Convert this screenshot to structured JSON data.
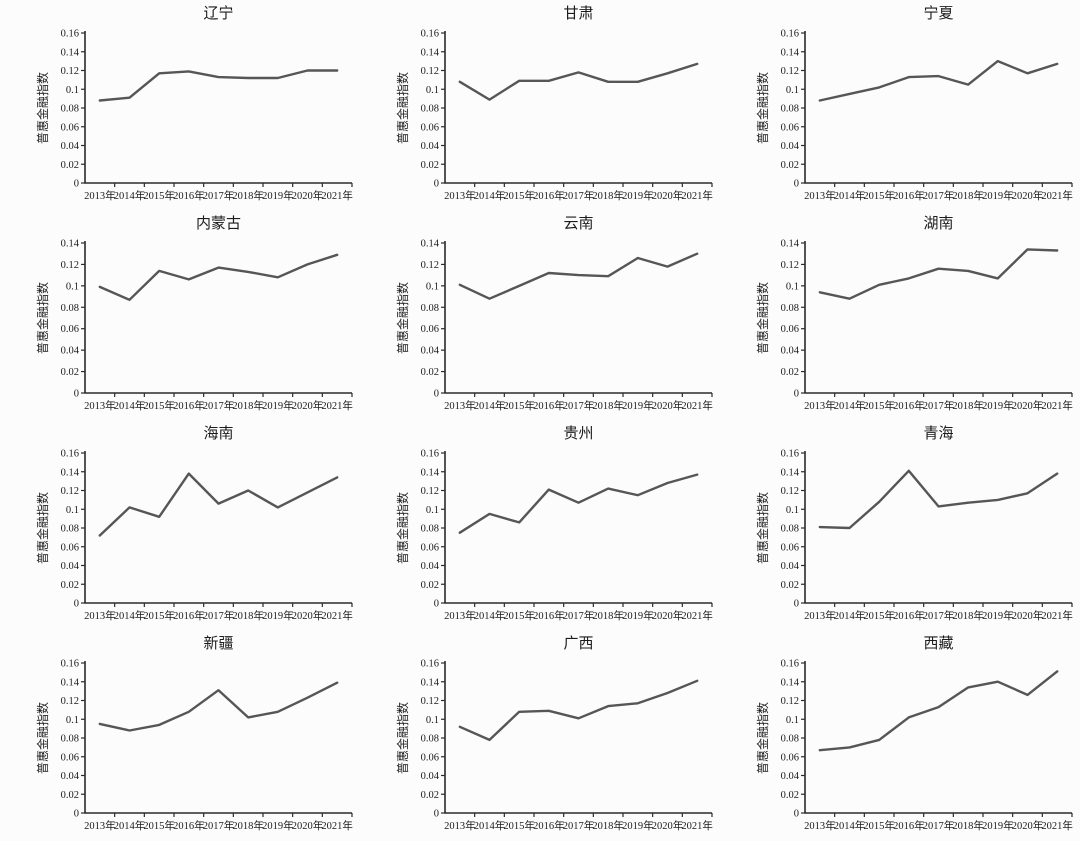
{
  "figure_title": "",
  "shared": {
    "ylabel": "普惠金融指数",
    "x_labels": [
      "2013年",
      "2014年",
      "2015年",
      "2016年",
      "2017年",
      "2018年",
      "2019年",
      "2020年",
      "2021年"
    ]
  },
  "colors": {
    "line": "#565656",
    "axis": "#2b2b2b",
    "text": "#1c1c1c",
    "background": "#fcfcfc"
  },
  "chart_data": [
    {
      "type": "line",
      "title": "辽宁",
      "xlabel": "",
      "ylabel": "普惠金融指数",
      "ylim": [
        0,
        0.16
      ],
      "ytick_labels": [
        "0",
        "0.02",
        "0.04",
        "0.06",
        "0.08",
        "0.1",
        "0.12",
        "0.14",
        "0.16"
      ],
      "values": [
        0.088,
        0.091,
        0.117,
        0.119,
        0.113,
        0.112,
        0.112,
        0.12,
        0.12
      ]
    },
    {
      "type": "line",
      "title": "甘肃",
      "xlabel": "",
      "ylabel": "普惠金融指数",
      "ylim": [
        0,
        0.16
      ],
      "ytick_labels": [
        "0",
        "0.02",
        "0.04",
        "0.06",
        "0.08",
        "0.1",
        "0.12",
        "0.14",
        "0.16"
      ],
      "values": [
        0.108,
        0.089,
        0.109,
        0.109,
        0.118,
        0.108,
        0.108,
        0.117,
        0.127
      ]
    },
    {
      "type": "line",
      "title": "宁夏",
      "xlabel": "",
      "ylabel": "普惠金融指数",
      "ylim": [
        0,
        0.16
      ],
      "ytick_labels": [
        "0",
        "0.02",
        "0.04",
        "0.06",
        "0.08",
        "0.1",
        "0.12",
        "0.14",
        "0.16"
      ],
      "values": [
        0.088,
        0.095,
        0.102,
        0.113,
        0.114,
        0.105,
        0.13,
        0.117,
        0.127
      ]
    },
    {
      "type": "line",
      "title": "内蒙古",
      "xlabel": "",
      "ylabel": "普惠金融指数",
      "ylim": [
        0,
        0.14
      ],
      "ytick_labels": [
        "0",
        "0.02",
        "0.04",
        "0.06",
        "0.08",
        "0.1",
        "0.12",
        "0.14"
      ],
      "values": [
        0.099,
        0.087,
        0.114,
        0.106,
        0.117,
        0.113,
        0.108,
        0.12,
        0.129
      ]
    },
    {
      "type": "line",
      "title": "云南",
      "xlabel": "",
      "ylabel": "普惠金融指数",
      "ylim": [
        0,
        0.14
      ],
      "ytick_labels": [
        "0",
        "0.02",
        "0.04",
        "0.06",
        "0.08",
        "0.1",
        "0.12",
        "0.14"
      ],
      "values": [
        0.101,
        0.088,
        0.1,
        0.112,
        0.11,
        0.109,
        0.126,
        0.118,
        0.13
      ]
    },
    {
      "type": "line",
      "title": "湖南",
      "xlabel": "",
      "ylabel": "普惠金融指数",
      "ylim": [
        0,
        0.14
      ],
      "ytick_labels": [
        "0",
        "0.02",
        "0.04",
        "0.06",
        "0.08",
        "0.1",
        "0.12",
        "0.14"
      ],
      "values": [
        0.094,
        0.088,
        0.101,
        0.107,
        0.116,
        0.114,
        0.107,
        0.134,
        0.133
      ]
    },
    {
      "type": "line",
      "title": "海南",
      "xlabel": "",
      "ylabel": "普惠金融指数",
      "ylim": [
        0,
        0.16
      ],
      "ytick_labels": [
        "0",
        "0.02",
        "0.04",
        "0.06",
        "0.08",
        "0.1",
        "0.12",
        "0.14",
        "0.16"
      ],
      "values": [
        0.072,
        0.102,
        0.092,
        0.138,
        0.106,
        0.12,
        0.102,
        0.118,
        0.134
      ]
    },
    {
      "type": "line",
      "title": "贵州",
      "xlabel": "",
      "ylabel": "普惠金融指数",
      "ylim": [
        0,
        0.16
      ],
      "ytick_labels": [
        "0",
        "0.02",
        "0.04",
        "0.06",
        "0.08",
        "0.1",
        "0.12",
        "0.14",
        "0.16"
      ],
      "values": [
        0.075,
        0.095,
        0.086,
        0.121,
        0.107,
        0.122,
        0.115,
        0.128,
        0.137
      ]
    },
    {
      "type": "line",
      "title": "青海",
      "xlabel": "",
      "ylabel": "普惠金融指数",
      "ylim": [
        0,
        0.16
      ],
      "ytick_labels": [
        "0",
        "0.02",
        "0.04",
        "0.06",
        "0.08",
        "0.1",
        "0.12",
        "0.14",
        "0.16"
      ],
      "values": [
        0.081,
        0.08,
        0.108,
        0.141,
        0.103,
        0.107,
        0.11,
        0.117,
        0.138
      ]
    },
    {
      "type": "line",
      "title": "新疆",
      "xlabel": "",
      "ylabel": "普惠金融指数",
      "ylim": [
        0,
        0.16
      ],
      "ytick_labels": [
        "0",
        "0.02",
        "0.04",
        "0.06",
        "0.08",
        "0.1",
        "0.12",
        "0.14",
        "0.16"
      ],
      "values": [
        0.095,
        0.088,
        0.094,
        0.108,
        0.131,
        0.102,
        0.108,
        0.123,
        0.139
      ]
    },
    {
      "type": "line",
      "title": "广西",
      "xlabel": "",
      "ylabel": "普惠金融指数",
      "ylim": [
        0,
        0.16
      ],
      "ytick_labels": [
        "0",
        "0.02",
        "0.04",
        "0.06",
        "0.08",
        "0.1",
        "0.12",
        "0.14",
        "0.16"
      ],
      "values": [
        0.092,
        0.078,
        0.108,
        0.109,
        0.101,
        0.114,
        0.117,
        0.128,
        0.141
      ]
    },
    {
      "type": "line",
      "title": "西藏",
      "xlabel": "",
      "ylabel": "普惠金融指数",
      "ylim": [
        0,
        0.16
      ],
      "ytick_labels": [
        "0",
        "0.02",
        "0.04",
        "0.06",
        "0.08",
        "0.1",
        "0.12",
        "0.14",
        "0.16"
      ],
      "values": [
        0.067,
        0.07,
        0.078,
        0.102,
        0.113,
        0.134,
        0.14,
        0.126,
        0.151
      ]
    }
  ]
}
